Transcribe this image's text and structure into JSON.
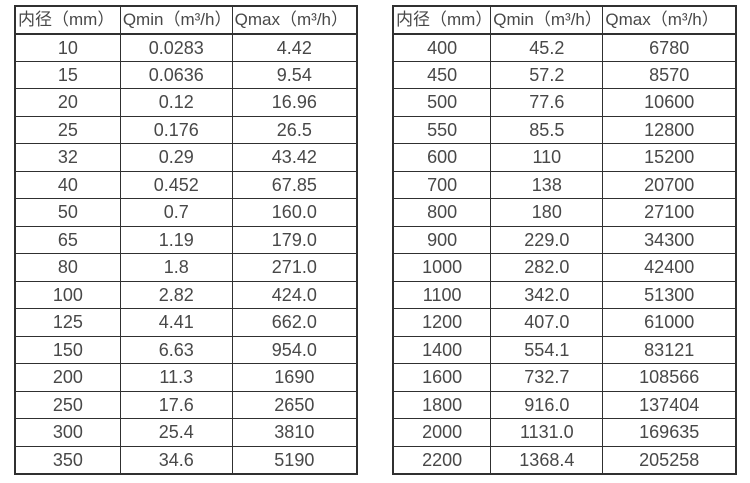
{
  "colors": {
    "background": "#ffffff",
    "border": "#303030",
    "text": "#484848"
  },
  "tables": [
    {
      "id": "small-diameter",
      "headers": [
        "内径（mm）",
        "Qmin（m³/h）",
        "Qmax（m³/h）"
      ],
      "rows": [
        [
          "10",
          "0.0283",
          "4.42"
        ],
        [
          "15",
          "0.0636",
          "9.54"
        ],
        [
          "20",
          "0.12",
          "16.96"
        ],
        [
          "25",
          "0.176",
          "26.5"
        ],
        [
          "32",
          "0.29",
          "43.42"
        ],
        [
          "40",
          "0.452",
          "67.85"
        ],
        [
          "50",
          "0.7",
          "160.0"
        ],
        [
          "65",
          "1.19",
          "179.0"
        ],
        [
          "80",
          "1.8",
          "271.0"
        ],
        [
          "100",
          "2.82",
          "424.0"
        ],
        [
          "125",
          "4.41",
          "662.0"
        ],
        [
          "150",
          "6.63",
          "954.0"
        ],
        [
          "200",
          "11.3",
          "1690"
        ],
        [
          "250",
          "17.6",
          "2650"
        ],
        [
          "300",
          "25.4",
          "3810"
        ],
        [
          "350",
          "34.6",
          "5190"
        ]
      ]
    },
    {
      "id": "large-diameter",
      "headers": [
        "内径（mm）",
        "Qmin（m³/h）",
        "Qmax（m³/h）"
      ],
      "rows": [
        [
          "400",
          "45.2",
          "6780"
        ],
        [
          "450",
          "57.2",
          "8570"
        ],
        [
          "500",
          "77.6",
          "10600"
        ],
        [
          "550",
          "85.5",
          "12800"
        ],
        [
          "600",
          "110",
          "15200"
        ],
        [
          "700",
          "138",
          "20700"
        ],
        [
          "800",
          "180",
          "27100"
        ],
        [
          "900",
          "229.0",
          "34300"
        ],
        [
          "1000",
          "282.0",
          "42400"
        ],
        [
          "1100",
          "342.0",
          "51300"
        ],
        [
          "1200",
          "407.0",
          "61000"
        ],
        [
          "1400",
          "554.1",
          "83121"
        ],
        [
          "1600",
          "732.7",
          "108566"
        ],
        [
          "1800",
          "916.0",
          "137404"
        ],
        [
          "2000",
          "1131.0",
          "169635"
        ],
        [
          "2200",
          "1368.4",
          "205258"
        ]
      ]
    }
  ]
}
